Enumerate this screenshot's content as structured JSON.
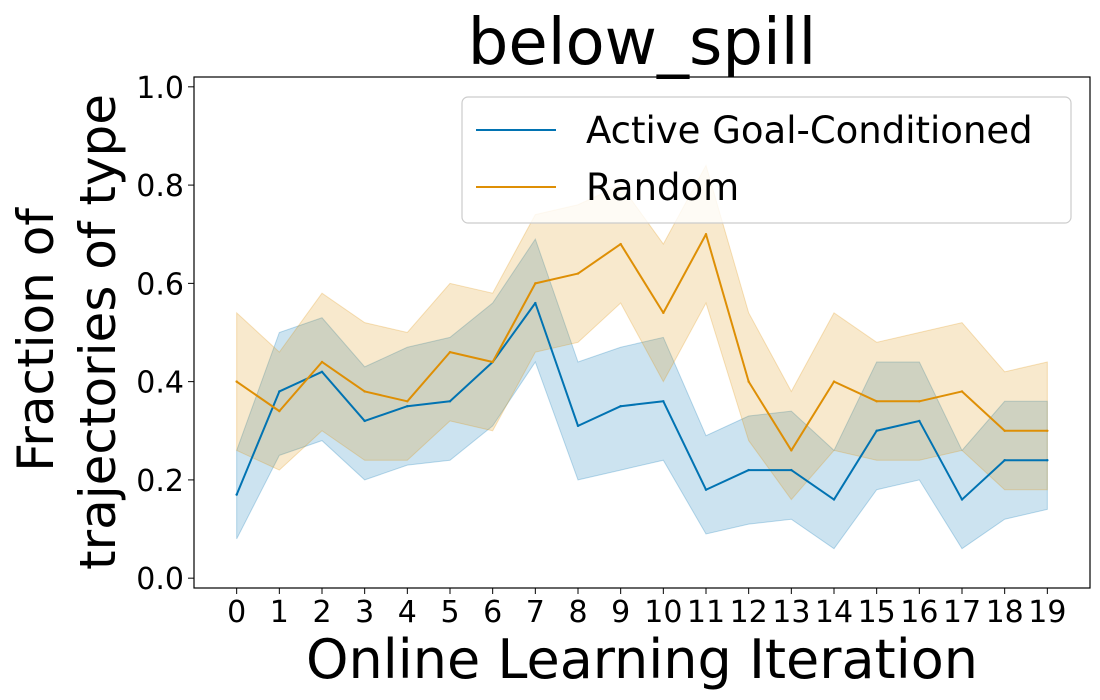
{
  "chart_data": {
    "type": "line",
    "title": "below_spill",
    "xlabel": "Online Learning Iteration",
    "ylabel_lines": [
      "Fraction of",
      "trajectories of type"
    ],
    "x": [
      0,
      1,
      2,
      3,
      4,
      5,
      6,
      7,
      8,
      9,
      10,
      11,
      12,
      13,
      14,
      15,
      16,
      17,
      18,
      19
    ],
    "xlim": [
      -1,
      20
    ],
    "ylim": [
      -0.02,
      1.02
    ],
    "yticks": [
      0.0,
      0.2,
      0.4,
      0.6,
      0.8,
      1.0
    ],
    "ytick_labels": [
      "0.0",
      "0.2",
      "0.4",
      "0.6",
      "0.8",
      "1.0"
    ],
    "legend_position": "upper right",
    "series": [
      {
        "name": "Active Goal-Conditioned",
        "color": "#0173b2",
        "values": [
          0.17,
          0.38,
          0.42,
          0.32,
          0.35,
          0.36,
          0.44,
          0.56,
          0.31,
          0.35,
          0.36,
          0.18,
          0.22,
          0.22,
          0.16,
          0.3,
          0.32,
          0.16,
          0.24,
          0.24
        ],
        "lower": [
          0.08,
          0.25,
          0.28,
          0.2,
          0.23,
          0.24,
          0.31,
          0.44,
          0.2,
          0.22,
          0.24,
          0.09,
          0.11,
          0.12,
          0.06,
          0.18,
          0.2,
          0.06,
          0.12,
          0.14
        ],
        "upper": [
          0.26,
          0.5,
          0.53,
          0.43,
          0.47,
          0.49,
          0.56,
          0.69,
          0.44,
          0.47,
          0.49,
          0.29,
          0.33,
          0.34,
          0.26,
          0.44,
          0.44,
          0.26,
          0.36,
          0.36
        ]
      },
      {
        "name": "Random",
        "color": "#de8f05",
        "values": [
          0.4,
          0.34,
          0.44,
          0.38,
          0.36,
          0.46,
          0.44,
          0.6,
          0.62,
          0.68,
          0.54,
          0.7,
          0.4,
          0.26,
          0.4,
          0.36,
          0.36,
          0.38,
          0.3,
          0.3
        ],
        "lower": [
          0.26,
          0.22,
          0.3,
          0.24,
          0.24,
          0.32,
          0.3,
          0.46,
          0.48,
          0.56,
          0.4,
          0.56,
          0.28,
          0.16,
          0.26,
          0.24,
          0.24,
          0.26,
          0.18,
          0.18
        ],
        "upper": [
          0.54,
          0.46,
          0.58,
          0.52,
          0.5,
          0.6,
          0.58,
          0.74,
          0.76,
          0.8,
          0.68,
          0.84,
          0.54,
          0.38,
          0.54,
          0.48,
          0.5,
          0.52,
          0.42,
          0.44
        ]
      }
    ]
  }
}
